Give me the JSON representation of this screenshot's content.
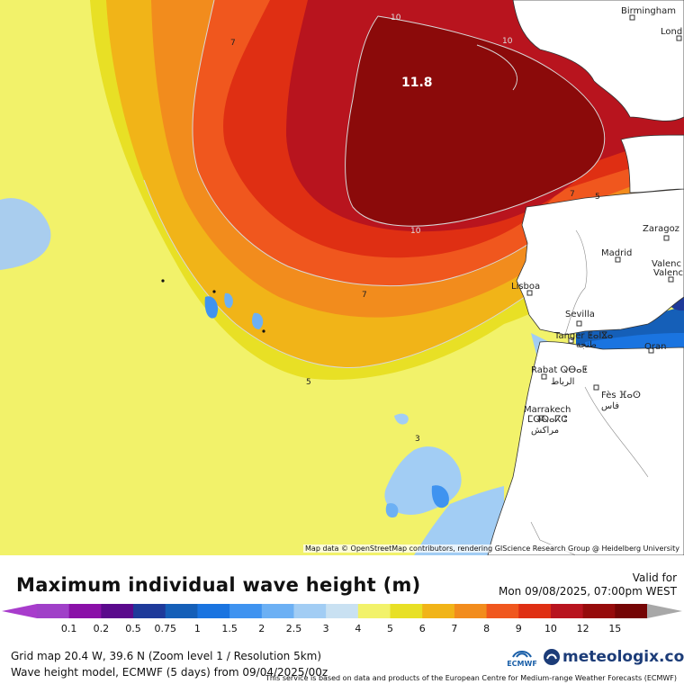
{
  "map": {
    "peak_value": "11.8",
    "contour_labels": [
      {
        "id": "c10-top",
        "text": "10"
      },
      {
        "id": "c10-top-right",
        "text": "10"
      },
      {
        "id": "c10-bottom",
        "text": "10"
      },
      {
        "id": "c7-topleft",
        "text": "7"
      },
      {
        "id": "c7-center",
        "text": "7"
      },
      {
        "id": "c7-biscay",
        "text": "7"
      },
      {
        "id": "c5-biscay",
        "text": "5"
      },
      {
        "id": "c5-south",
        "text": "5"
      },
      {
        "id": "c3-canary",
        "text": "3"
      }
    ],
    "cities": [
      {
        "id": "birmingham",
        "name": "Birmingham"
      },
      {
        "id": "london",
        "name": "Lond"
      },
      {
        "id": "zaragoza",
        "name": "Zaragoz"
      },
      {
        "id": "madrid",
        "name": "Madrid"
      },
      {
        "id": "valencia1",
        "name": "Valenc"
      },
      {
        "id": "valencia2",
        "name": "Valenc"
      },
      {
        "id": "lisboa",
        "name": "Lisboa"
      },
      {
        "id": "sevilla",
        "name": "Sevilla"
      },
      {
        "id": "tanger1",
        "name": "Tanger ⵟⴰⵏⴵⴰ"
      },
      {
        "id": "tanger2",
        "name": "طنجة"
      },
      {
        "id": "oran",
        "name": "Oran"
      },
      {
        "id": "rabat1",
        "name": "Rabat ⵕⴱⴰⵟ"
      },
      {
        "id": "rabat2",
        "name": "الرباط"
      },
      {
        "id": "fes1",
        "name": "Fès ⴼⴰⵙ"
      },
      {
        "id": "fes2",
        "name": "فاس"
      },
      {
        "id": "marrakech1",
        "name": "Marrakech"
      },
      {
        "id": "marrakech2",
        "name": "ⵎⵕⵕⴰⴽⵛ"
      },
      {
        "id": "marrakech3",
        "name": "مراكش"
      }
    ],
    "attribution": "Map data © OpenStreetMap contributors, rendering GIScience Research Group @ Heidelberg University"
  },
  "header": {
    "title": "Maximum individual wave height (m)",
    "valid_label": "Valid for",
    "valid_date": "Mon 09/08/2025, 07:00pm WEST"
  },
  "legend": {
    "ticks": [
      "0.1",
      "0.2",
      "0.5",
      "0.75",
      "1",
      "1.5",
      "2",
      "2.5",
      "3",
      "4",
      "5",
      "6",
      "7",
      "8",
      "9",
      "10",
      "12",
      "15"
    ],
    "colors": [
      "#a040c8",
      "#8a10a8",
      "#5a0a8c",
      "#1e3a9a",
      "#155fb8",
      "#1a74e0",
      "#3f93f0",
      "#6cb0f4",
      "#a2cdf4",
      "#c9e1f2",
      "#f2f26a",
      "#e8e025",
      "#f1b418",
      "#f28c1d",
      "#f0571e",
      "#df2f13",
      "#b8141e",
      "#960b0b",
      "#750505"
    ],
    "under_color": "#a83ccc",
    "over_color": "#a8a8a8"
  },
  "footer": {
    "line1": "Grid map 20.4 W, 39.6 N (Zoom level 1 / Resolution 5km)",
    "line2": "Wave height model, ECMWF (5 days) from 09/04/2025/00z",
    "disclaimer": "This service is based on data and products of the European Centre for Medium-range Weather Forecasts (ECMWF)",
    "ecmwf_label": "ECMWF",
    "brand": "meteologix.com"
  },
  "colors": {
    "land": "#ffffff",
    "peak_zone": "#8b0a0a",
    "brand_blue": "#1c3c78"
  }
}
